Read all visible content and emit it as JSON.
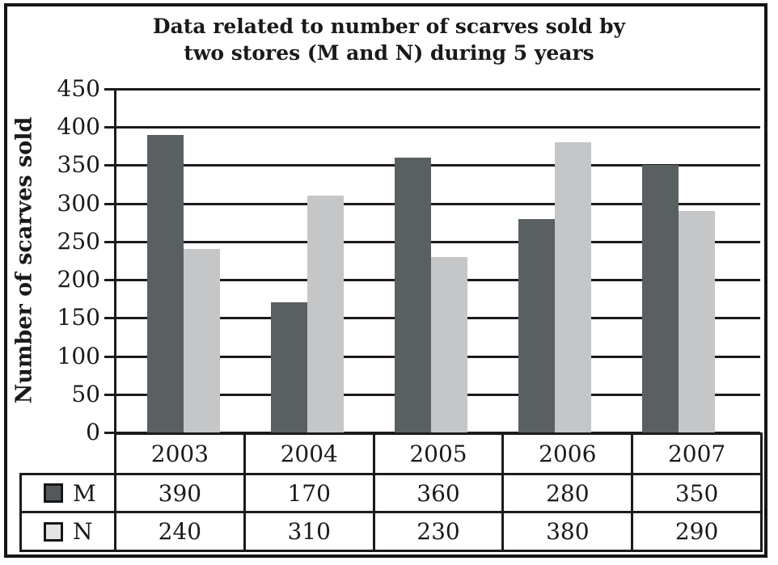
{
  "title": {
    "line1": "Data related to number of scarves sold by",
    "line2": "two stores (M and N) during 5 years"
  },
  "chart_data": {
    "type": "bar",
    "title": "Data related to number of scarves sold by two stores (M and N) during 5 years",
    "categories": [
      "2003",
      "2004",
      "2005",
      "2006",
      "2007"
    ],
    "series": [
      {
        "name": "M",
        "values": [
          390,
          170,
          360,
          280,
          350
        ],
        "bar_color": "#5a5f62",
        "swatch_color": "#54585b"
      },
      {
        "name": "N",
        "values": [
          240,
          310,
          230,
          380,
          290
        ],
        "bar_color": "#c5c6c8",
        "swatch_color": "#e4e4e5"
      }
    ],
    "xlabel": "",
    "ylabel": "Number of scarves sold",
    "ylim": [
      0,
      450
    ],
    "yticks": [
      0,
      50,
      100,
      150,
      200,
      250,
      300,
      350,
      400,
      450
    ],
    "grid": "horizontal-only",
    "legend_position": "table-below-left-column",
    "line_color": "#1b1b1b"
  }
}
